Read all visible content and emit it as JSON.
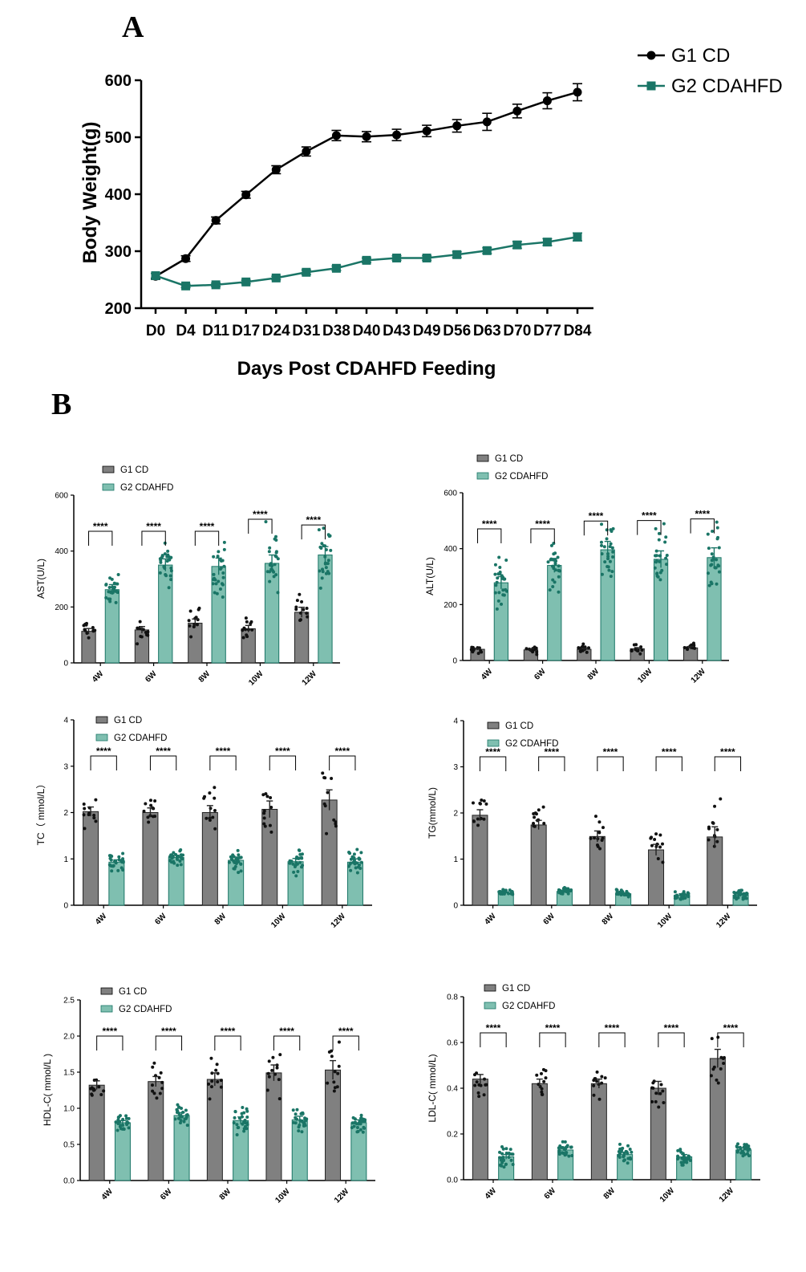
{
  "figure": {
    "panel_a_label": "A",
    "panel_b_label": "B"
  },
  "colors": {
    "cd": "#000000",
    "cdahfd": "#1a7566",
    "cd_bar": "#808080",
    "cdahfd_bar": "#7fbfb0",
    "cdahfd_dot": "#1a7566"
  },
  "chart_data": [
    {
      "id": "weight",
      "type": "line",
      "title": "",
      "xlabel": "Days Post CDAHFD Feeding",
      "ylabel": "Body Weight(g)",
      "ylim": [
        200,
        600
      ],
      "yticks": [
        200,
        300,
        400,
        500,
        600
      ],
      "categories": [
        "D0",
        "D4",
        "D11",
        "D17",
        "D24",
        "D31",
        "D38",
        "D40",
        "D43",
        "D49",
        "D56",
        "D63",
        "D70",
        "D77",
        "D84"
      ],
      "series": [
        {
          "name": "G1 CD",
          "values": [
            256,
            287,
            354,
            399,
            443,
            475,
            503,
            501,
            504,
            511,
            520,
            527,
            546,
            564,
            579
          ],
          "errors": [
            5,
            5,
            6,
            6,
            7,
            8,
            9,
            9,
            10,
            10,
            11,
            15,
            12,
            14,
            15
          ]
        },
        {
          "name": "G2 CDAHFD",
          "values": [
            257,
            239,
            241,
            246,
            253,
            263,
            270,
            284,
            288,
            288,
            294,
            301,
            311,
            316,
            325
          ],
          "errors": [
            4,
            3,
            3,
            3,
            3,
            4,
            4,
            4,
            4,
            4,
            5,
            5,
            6,
            6,
            7
          ]
        }
      ],
      "legend": "top-right"
    },
    {
      "id": "ast",
      "type": "bar",
      "title": "",
      "ylabel": "AST(U/L)",
      "ylim": [
        0,
        600
      ],
      "yticks": [
        0,
        200,
        400,
        600
      ],
      "categories": [
        "4W",
        "6W",
        "8W",
        "10W",
        "12W"
      ],
      "series": [
        {
          "name": "G1 CD",
          "values": [
            113,
            118,
            142,
            122,
            181
          ],
          "errors": [
            10,
            12,
            15,
            12,
            18
          ]
        },
        {
          "name": "G2 CDAHFD",
          "values": [
            262,
            350,
            345,
            356,
            386
          ],
          "errors": [
            18,
            22,
            30,
            30,
            30
          ]
        }
      ],
      "significance": [
        "****",
        "****",
        "****",
        "****",
        "****"
      ]
    },
    {
      "id": "alt",
      "type": "bar",
      "title": "",
      "ylabel": "ALT(U/L)",
      "ylim": [
        0,
        600
      ],
      "yticks": [
        0,
        200,
        400,
        600
      ],
      "categories": [
        "4W",
        "6W",
        "8W",
        "10W",
        "12W"
      ],
      "series": [
        {
          "name": "G1 CD",
          "values": [
            40,
            38,
            40,
            42,
            45
          ],
          "errors": [
            3,
            4,
            4,
            4,
            5
          ]
        },
        {
          "name": "G2 CDAHFD",
          "values": [
            278,
            340,
            396,
            362,
            368
          ],
          "errors": [
            22,
            25,
            30,
            30,
            35
          ]
        }
      ],
      "significance": [
        "****",
        "****",
        "****",
        "****",
        "****"
      ]
    },
    {
      "id": "tc",
      "type": "bar",
      "title": "",
      "ylabel": "TC（ mmol/L）",
      "ylim": [
        0,
        4
      ],
      "yticks": [
        0,
        1,
        2,
        3,
        4
      ],
      "categories": [
        "4W",
        "6W",
        "8W",
        "10W",
        "12W"
      ],
      "series": [
        {
          "name": "G1 CD",
          "values": [
            2.02,
            2.0,
            2.0,
            2.07,
            2.27
          ],
          "errors": [
            0.1,
            0.1,
            0.15,
            0.18,
            0.22
          ]
        },
        {
          "name": "G2 CDAHFD",
          "values": [
            0.93,
            1.03,
            0.97,
            0.94,
            0.93
          ],
          "errors": [
            0.05,
            0.05,
            0.07,
            0.07,
            0.07
          ]
        }
      ],
      "significance": [
        "****",
        "****",
        "****",
        "****",
        "****"
      ]
    },
    {
      "id": "tg",
      "type": "bar",
      "title": "",
      "ylabel": "TG(mmol/L)",
      "ylim": [
        0,
        4
      ],
      "yticks": [
        0,
        1,
        2,
        3,
        4
      ],
      "categories": [
        "4W",
        "6W",
        "8W",
        "10W",
        "12W"
      ],
      "series": [
        {
          "name": "G1 CD",
          "values": [
            1.95,
            1.74,
            1.49,
            1.2,
            1.48
          ],
          "errors": [
            0.12,
            0.1,
            0.12,
            0.12,
            0.22
          ]
        },
        {
          "name": "G2 CDAHFD",
          "values": [
            0.27,
            0.3,
            0.25,
            0.22,
            0.22
          ],
          "errors": [
            0.02,
            0.02,
            0.02,
            0.03,
            0.03
          ]
        }
      ],
      "significance": [
        "****",
        "****",
        "****",
        "****",
        "****"
      ]
    },
    {
      "id": "hdl",
      "type": "bar",
      "title": "",
      "ylabel": "HDL-C( mmol/L )",
      "ylim": [
        0,
        2.5
      ],
      "yticks": [
        "0.0",
        "0.5",
        "1.0",
        "1.5",
        "2.0",
        "2.5"
      ],
      "categories": [
        "4W",
        "6W",
        "8W",
        "10W",
        "12W"
      ],
      "series": [
        {
          "name": "G1 CD",
          "values": [
            1.32,
            1.37,
            1.4,
            1.49,
            1.53
          ],
          "errors": [
            0.06,
            0.07,
            0.09,
            0.11,
            0.13
          ]
        },
        {
          "name": "G2 CDAHFD",
          "values": [
            0.8,
            0.9,
            0.83,
            0.84,
            0.8
          ],
          "errors": [
            0.03,
            0.04,
            0.05,
            0.05,
            0.04
          ]
        }
      ],
      "significance": [
        "****",
        "****",
        "****",
        "****",
        "****"
      ]
    },
    {
      "id": "ldl",
      "type": "bar",
      "title": "",
      "ylabel": "LDL-C( mmol/L)",
      "ylim": [
        0,
        0.8
      ],
      "yticks": [
        "0.0",
        "0.2",
        "0.4",
        "0.6",
        "0.8"
      ],
      "categories": [
        "4W",
        "6W",
        "8W",
        "10W",
        "12W"
      ],
      "series": [
        {
          "name": "G1 CD",
          "values": [
            0.44,
            0.42,
            0.42,
            0.4,
            0.53
          ],
          "errors": [
            0.02,
            0.02,
            0.02,
            0.03,
            0.04
          ]
        },
        {
          "name": "G2 CDAHFD",
          "values": [
            0.1,
            0.13,
            0.11,
            0.1,
            0.13
          ],
          "errors": [
            0.01,
            0.01,
            0.01,
            0.01,
            0.01
          ]
        }
      ],
      "significance": [
        "****",
        "****",
        "****",
        "****",
        "****"
      ]
    }
  ]
}
